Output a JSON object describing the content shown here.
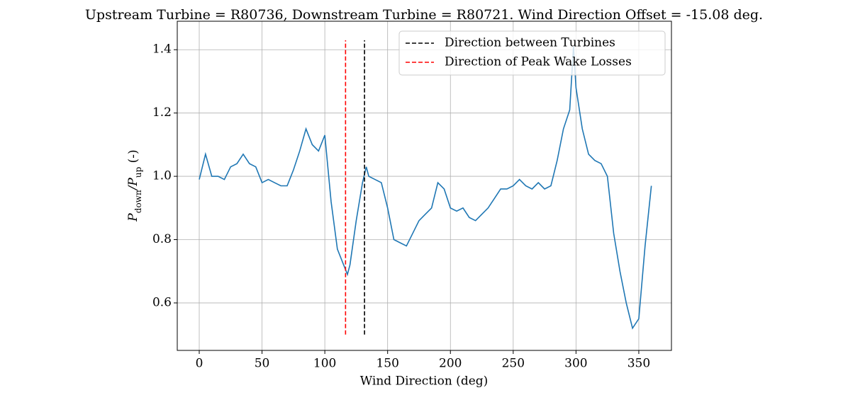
{
  "chart_data": {
    "type": "line",
    "title": "Upstream Turbine = R80736, Downstream Turbine = R80721. Wind Direction Offset = -15.08 deg.",
    "xlabel": "Wind Direction (deg)",
    "ylabel_parts": [
      {
        "text": "P"
      },
      {
        "text": "down",
        "sub": true
      },
      {
        "text": "/P"
      },
      {
        "text": "up",
        "sub": true
      },
      {
        "text": " (-)"
      }
    ],
    "xlim": [
      -17.5,
      376
    ],
    "ylim": [
      0.45,
      1.49
    ],
    "xticks": [
      0,
      50,
      100,
      150,
      200,
      250,
      300,
      350
    ],
    "yticks": [
      0.6,
      0.8,
      {
        "value": 1,
        "label": "1.0"
      },
      1.2,
      1.4
    ],
    "grid": true,
    "legend": "upper right",
    "series": [
      {
        "color": "#1f77b4",
        "x": [
          0,
          5,
          10,
          15,
          20,
          25,
          30,
          35,
          40,
          45,
          50,
          55,
          60,
          65,
          70,
          75,
          80,
          85,
          90,
          95,
          100,
          105,
          110,
          115,
          118,
          120,
          125,
          130,
          133,
          135,
          140,
          145,
          150,
          155,
          160,
          165,
          170,
          175,
          180,
          185,
          190,
          195,
          200,
          205,
          210,
          215,
          220,
          225,
          230,
          235,
          240,
          245,
          250,
          255,
          260,
          265,
          270,
          275,
          280,
          285,
          290,
          295,
          298,
          300,
          305,
          310,
          315,
          320,
          325,
          330,
          335,
          340,
          345,
          350,
          355,
          360
        ],
        "values": [
          0.99,
          1.07,
          1.0,
          1.0,
          0.99,
          1.03,
          1.04,
          1.07,
          1.04,
          1.03,
          0.98,
          0.99,
          0.98,
          0.97,
          0.97,
          1.02,
          1.08,
          1.15,
          1.1,
          1.08,
          1.13,
          0.92,
          0.77,
          0.72,
          0.69,
          0.72,
          0.86,
          0.98,
          1.03,
          1.0,
          0.99,
          0.98,
          0.9,
          0.8,
          0.79,
          0.78,
          0.82,
          0.86,
          0.88,
          0.9,
          0.98,
          0.96,
          0.9,
          0.89,
          0.9,
          0.87,
          0.86,
          0.88,
          0.9,
          0.93,
          0.96,
          0.96,
          0.97,
          0.99,
          0.97,
          0.96,
          0.98,
          0.96,
          0.97,
          1.05,
          1.15,
          1.21,
          1.41,
          1.28,
          1.15,
          1.07,
          1.05,
          1.04,
          1.0,
          0.82,
          0.7,
          0.6,
          0.52,
          0.55,
          0.78,
          0.97
        ]
      }
    ],
    "lines": [
      {
        "name": "Direction between Turbines",
        "color": "#000000",
        "x": 131.6,
        "y": [
          0.5,
          1.43
        ]
      },
      {
        "name": "Direction of Peak Wake Losses",
        "color": "#ff0000",
        "x": 116.5,
        "y": [
          0.5,
          1.43
        ]
      }
    ]
  }
}
